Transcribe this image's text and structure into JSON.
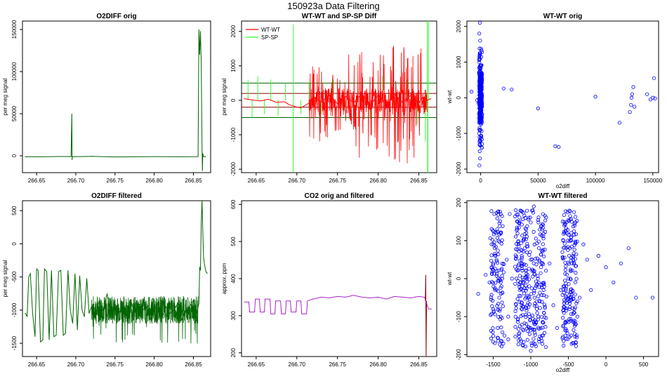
{
  "figure": {
    "title": "150923a   Data Filtering"
  },
  "colors": {
    "green": "#006400",
    "red": "#ff0000",
    "lime": "#33ff33",
    "purple": "#aa22cc",
    "darkred": "#8b0000",
    "blue": "#0000ff",
    "axis": "#000000"
  },
  "chart_data": [
    {
      "id": "p1",
      "type": "line",
      "title": "O2DIFF orig",
      "xlabel": "",
      "ylabel": "per meg signal",
      "xlim": [
        266.632,
        266.872
      ],
      "ylim": [
        -20000,
        160000
      ],
      "xticks": [
        266.65,
        266.7,
        266.75,
        266.8,
        266.85
      ],
      "xticklabels": [
        "266.65",
        "266.70",
        "266.75",
        "266.80",
        "266.85"
      ],
      "yticks": [
        0,
        50000,
        100000,
        150000
      ],
      "yticklabels": [
        "0",
        "50000",
        "100000",
        "150000"
      ],
      "series": [
        {
          "name": "O2DIFF",
          "color": "green",
          "x": [
            266.635,
            266.65,
            266.68,
            266.694,
            266.695,
            266.6953,
            266.6956,
            266.696,
            266.72,
            266.75,
            266.8,
            266.84,
            266.856,
            266.857,
            266.858,
            266.859,
            266.86,
            266.861,
            266.8615,
            266.862,
            266.863,
            266.866
          ],
          "y": [
            -1000,
            -1200,
            -800,
            -900,
            50000,
            -5000,
            -1000,
            -1100,
            -700,
            -1300,
            -900,
            -1200,
            -1000,
            150000,
            120000,
            148000,
            110000,
            15000,
            -18000,
            3000,
            -1000,
            -1100
          ]
        }
      ]
    },
    {
      "id": "p2",
      "type": "line",
      "title": "WT-WT and SP-SP Diff",
      "xlabel": "",
      "ylabel": "per meg signal",
      "xlim": [
        266.632,
        266.872
      ],
      "ylim": [
        -2100,
        2300
      ],
      "xticks": [
        266.65,
        266.7,
        266.75,
        266.8,
        266.85
      ],
      "xticklabels": [
        "266.65",
        "266.70",
        "266.75",
        "266.80",
        "266.85"
      ],
      "yticks": [
        -2000,
        -1000,
        0,
        1000,
        2000
      ],
      "yticklabels": [
        "-2000",
        "-1000",
        "0",
        "1000",
        "2000"
      ],
      "legend": {
        "position": "top-left",
        "entries": [
          {
            "label": "WT-WT",
            "color": "red"
          },
          {
            "label": "SP-SP",
            "color": "lime"
          }
        ]
      },
      "hlines": [
        {
          "y": 500,
          "color": "green"
        },
        {
          "y": -500,
          "color": "green"
        },
        {
          "y": 200,
          "color": "darkred"
        },
        {
          "y": -200,
          "color": "darkred"
        }
      ],
      "series": [
        {
          "name": "SP-SP",
          "color": "lime",
          "spikes": [
            {
              "x": 266.64,
              "y": 600
            },
            {
              "x": 266.645,
              "y": -500
            },
            {
              "x": 266.652,
              "y": 700
            },
            {
              "x": 266.66,
              "y": -400
            },
            {
              "x": 266.668,
              "y": 600
            },
            {
              "x": 266.677,
              "y": -450
            },
            {
              "x": 266.686,
              "y": 500
            },
            {
              "x": 266.6955,
              "y": -2100
            },
            {
              "x": 266.6958,
              "y": 2200
            },
            {
              "x": 266.705,
              "y": -400
            },
            {
              "x": 266.715,
              "y": 500
            },
            {
              "x": 266.73,
              "y": -400
            },
            {
              "x": 266.745,
              "y": 600
            },
            {
              "x": 266.76,
              "y": -600
            },
            {
              "x": 266.775,
              "y": 500
            },
            {
              "x": 266.79,
              "y": -500
            },
            {
              "x": 266.805,
              "y": 700
            },
            {
              "x": 266.82,
              "y": -600
            },
            {
              "x": 266.835,
              "y": 600
            },
            {
              "x": 266.848,
              "y": -700
            },
            {
              "x": 266.858,
              "y": -1200
            },
            {
              "x": 266.8605,
              "y": 2300
            },
            {
              "x": 266.8608,
              "y": -2100
            },
            {
              "x": 266.8612,
              "y": -2100
            },
            {
              "x": 266.8618,
              "y": 2300
            }
          ]
        },
        {
          "name": "WT-WT",
          "color": "red",
          "x": [
            266.635,
            266.645,
            266.655,
            266.665,
            266.675,
            266.685,
            266.69,
            266.7,
            266.705,
            266.71,
            266.715,
            266.72,
            266.73,
            266.74,
            266.75,
            266.76,
            266.77,
            266.78,
            266.79,
            266.8,
            266.81,
            266.82,
            266.83,
            266.84,
            266.85,
            266.855,
            266.86,
            266.865
          ],
          "y": [
            50,
            10,
            -20,
            30,
            -60,
            -40,
            -120,
            -200,
            -220,
            -150,
            -80,
            100,
            -50,
            150,
            -100,
            120,
            -80,
            200,
            -150,
            150,
            -100,
            180,
            -60,
            140,
            -80,
            100,
            0,
            50
          ],
          "band": [
            {
              "from": 266.715,
              "to": 266.86,
              "y_low": [
                -1200,
                -1700,
                -1950
              ],
              "y_high": [
                1000,
                1400,
                1600
              ]
            }
          ]
        }
      ]
    },
    {
      "id": "p3",
      "type": "scatter",
      "title": "WT-WT orig",
      "xlabel": "o2diff",
      "ylabel": "wt-wt",
      "xlim": [
        -12000,
        155000
      ],
      "ylim": [
        -2100,
        2150
      ],
      "xticks": [
        0,
        50000,
        100000,
        150000
      ],
      "xticklabels": [
        "0",
        "50000",
        "100000",
        "150000"
      ],
      "yticks": [
        -2000,
        -1000,
        0,
        1000,
        2000
      ],
      "yticklabels": [
        "-2000",
        "-1000",
        "0",
        "1000",
        "2000"
      ],
      "series": [
        {
          "name": "wt-wt",
          "color": "blue",
          "x": [
            -1000,
            -800,
            -1200,
            -600,
            -1500,
            -400,
            -900,
            -700,
            -1100,
            -500,
            -300,
            -1300,
            -200,
            -1000,
            -800,
            -900,
            -600,
            -1100,
            -700,
            -1200,
            -500,
            -1400,
            -1000,
            -800,
            -900,
            -300,
            -1200,
            -600,
            -700,
            -1000,
            -8000,
            -3000,
            -2000,
            -1500,
            20000,
            27000,
            50000,
            65000,
            68000,
            100000,
            121000,
            130000,
            131000,
            131500,
            132000,
            133000,
            134000,
            145000,
            148000,
            150000,
            151000,
            152000,
            1000,
            -500,
            -1000
          ],
          "y": [
            1380,
            1250,
            1100,
            900,
            700,
            500,
            300,
            100,
            -100,
            -300,
            -500,
            -700,
            -900,
            -1100,
            -1300,
            -1500,
            -1700,
            -1900,
            2100,
            1800,
            1600,
            -1000,
            -200,
            600,
            -600,
            200,
            1000,
            -1200,
            400,
            -400,
            170,
            -70,
            -150,
            -30,
            260,
            230,
            -300,
            -1360,
            -1380,
            30,
            -700,
            -400,
            -200,
            0,
            100,
            300,
            -250,
            100,
            -50,
            0,
            550,
            -20,
            -50,
            -200,
            800
          ]
        }
      ]
    },
    {
      "id": "p4",
      "type": "line",
      "title": "O2DIFF filtered",
      "xlabel": "",
      "ylabel": "per meg signal",
      "xlim": [
        266.632,
        266.872
      ],
      "ylim": [
        -1700,
        650
      ],
      "xticks": [
        266.65,
        266.7,
        266.75,
        266.8,
        266.85
      ],
      "xticklabels": [
        "266.65",
        "266.70",
        "266.75",
        "266.80",
        "266.85"
      ],
      "yticks": [
        -1500,
        -1000,
        -500,
        0,
        500
      ],
      "yticklabels": [
        "-1500",
        "-1000",
        "-500",
        "0",
        "500"
      ],
      "series": [
        {
          "name": "O2DIFF filtered",
          "color": "green",
          "x": [
            266.635,
            266.636,
            266.638,
            266.64,
            266.642,
            266.645,
            266.648,
            266.65,
            266.652,
            266.655,
            266.658,
            266.66,
            266.663,
            266.666,
            266.669,
            266.672,
            266.675,
            266.678,
            266.681,
            266.684,
            266.687,
            266.69,
            266.693,
            266.696,
            266.699,
            266.702,
            266.705,
            266.708,
            266.711,
            266.714,
            266.717,
            266.72,
            266.725,
            266.73,
            266.735,
            266.74,
            266.745,
            266.75,
            266.755,
            266.76,
            266.765,
            266.77,
            266.775,
            266.78,
            266.785,
            266.79,
            266.795,
            266.8,
            266.805,
            266.81,
            266.815,
            266.82,
            266.825,
            266.83,
            266.835,
            266.84,
            266.845,
            266.85,
            266.852,
            266.855,
            266.857,
            266.858,
            266.859,
            266.86,
            266.861,
            266.862,
            266.863,
            266.864,
            266.866,
            266.868
          ],
          "y": [
            -1050,
            -1050,
            -1100,
            -500,
            -450,
            -1050,
            -1400,
            -380,
            -400,
            -1480,
            -1450,
            -380,
            -420,
            -1450,
            -400,
            -1400,
            -1380,
            -420,
            -400,
            -1380,
            -1350,
            -400,
            -1000,
            -1200,
            -450,
            -1300,
            -480,
            -1000,
            -1100,
            -520,
            -1050,
            -950,
            -1100,
            -850,
            -1000,
            -750,
            -1150,
            -900,
            -1050,
            -950,
            -1100,
            -850,
            -1050,
            -900,
            -1000,
            -950,
            -1150,
            -1000,
            -900,
            -1100,
            -950,
            -1050,
            -1000,
            -900,
            -1150,
            -1000,
            -950,
            -850,
            -1200,
            -1000,
            -900,
            -350,
            -400,
            300,
            650,
            200,
            -200,
            -300,
            -420,
            -450
          ]
        }
      ]
    },
    {
      "id": "p5",
      "type": "line",
      "title": "CO2 orig and filtered",
      "xlabel": "",
      "ylabel": "approx. ppm",
      "xlim": [
        266.632,
        266.872
      ],
      "ylim": [
        190,
        610
      ],
      "xticks": [
        266.65,
        266.7,
        266.75,
        266.8,
        266.85
      ],
      "xticklabels": [
        "266.65",
        "266.70",
        "266.75",
        "266.80",
        "266.85"
      ],
      "yticks": [
        200,
        300,
        400,
        500,
        600
      ],
      "yticklabels": [
        "200",
        "300",
        "400",
        "500",
        "600"
      ],
      "series": [
        {
          "name": "CO2 orig",
          "color": "darkred",
          "x": [
            266.858,
            266.8585,
            266.859,
            266.8595
          ],
          "y": [
            340,
            410,
            190,
            340
          ]
        },
        {
          "name": "CO2 filtered",
          "color": "purple",
          "x": [
            266.635,
            266.641,
            266.642,
            266.648,
            266.649,
            266.654,
            266.655,
            266.66,
            266.661,
            266.667,
            266.668,
            266.673,
            266.674,
            266.68,
            266.681,
            266.686,
            266.687,
            266.692,
            266.693,
            266.699,
            266.7,
            266.705,
            266.706,
            266.712,
            266.713,
            266.72,
            266.73,
            266.74,
            266.75,
            266.76,
            266.77,
            266.78,
            266.79,
            266.8,
            266.81,
            266.82,
            266.83,
            266.84,
            266.85,
            266.857,
            266.862,
            266.866
          ],
          "y": [
            337,
            337,
            310,
            310,
            345,
            345,
            310,
            310,
            345,
            345,
            305,
            305,
            340,
            340,
            305,
            305,
            340,
            340,
            310,
            310,
            340,
            340,
            305,
            305,
            340,
            345,
            350,
            348,
            352,
            350,
            355,
            350,
            348,
            350,
            345,
            352,
            350,
            348,
            352,
            350,
            318,
            318
          ]
        }
      ]
    },
    {
      "id": "p6",
      "type": "scatter",
      "title": "WT-WT filtered",
      "xlabel": "o2diff",
      "ylabel": "wt-wt",
      "xlim": [
        -1850,
        700
      ],
      "ylim": [
        -205,
        205
      ],
      "xticks": [
        -1500,
        -1000,
        -500,
        0,
        500
      ],
      "xticklabels": [
        "-1500",
        "-1000",
        "-500",
        "0",
        "500"
      ],
      "yticks": [
        -200,
        -100,
        0,
        100,
        200
      ],
      "yticklabels": [
        "-200",
        "-100",
        "0",
        "100",
        "200"
      ],
      "series": [
        {
          "name": "wt-wt filtered",
          "color": "blue",
          "x": [
            -1450,
            -1420,
            -1480,
            -1400,
            -1500,
            -1380,
            -1440,
            -1460,
            -1410,
            -1470,
            -1390,
            -1430,
            -1350,
            -1520,
            -1550,
            -1600,
            -1700,
            -1320,
            -1300,
            -1280,
            -1050,
            -1000,
            -950,
            -1100,
            -900,
            -1150,
            -850,
            -1200,
            -800,
            -980,
            -1020,
            -1080,
            -920,
            -1060,
            -940,
            -1120,
            -880,
            -1000,
            -960,
            -1040,
            -1250,
            -750,
            -700,
            -1300,
            -650,
            -1180,
            -830,
            -1010,
            -990,
            -1070,
            -500,
            -450,
            -520,
            -480,
            -420,
            -550,
            -400,
            -470,
            -530,
            -440,
            -490,
            -510,
            -380,
            -350,
            -300,
            -250,
            -200,
            -100,
            0,
            100,
            200,
            300,
            400,
            620,
            -600,
            -580,
            -560,
            -540,
            -460,
            -430
          ],
          "y": [
            20,
            -50,
            80,
            -100,
            40,
            0,
            -130,
            120,
            -80,
            60,
            -20,
            100,
            -150,
            30,
            -10,
            10,
            -40,
            50,
            -160,
            170,
            0,
            50,
            -50,
            100,
            -100,
            150,
            -150,
            180,
            -180,
            20,
            -20,
            80,
            -80,
            120,
            -120,
            60,
            -60,
            -190,
            190,
            10,
            0,
            40,
            -70,
            -100,
            -130,
            130,
            -30,
            70,
            -170,
            160,
            0,
            40,
            -40,
            80,
            -80,
            120,
            -120,
            20,
            -20,
            60,
            -60,
            100,
            -100,
            -50,
            90,
            50,
            -30,
            60,
            30,
            -10,
            40,
            80,
            -50,
            -50,
            -30,
            70,
            -90,
            -150,
            110,
            -170
          ]
        }
      ]
    }
  ]
}
